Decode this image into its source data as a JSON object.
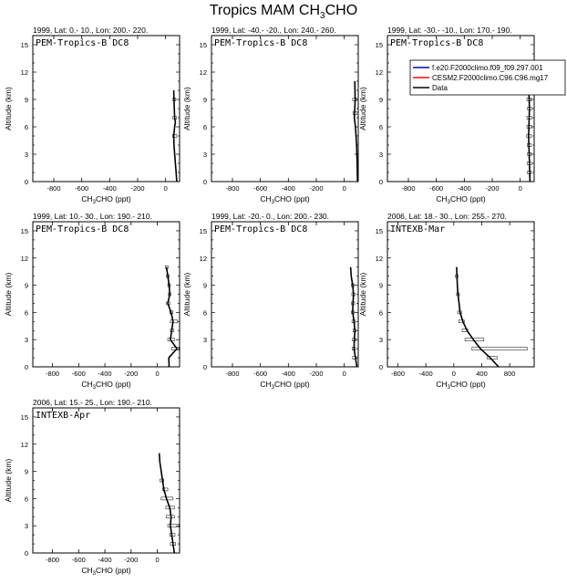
{
  "title": {
    "main": "Tropics MAM CH",
    "sub": "3",
    "suffix": "CHO"
  },
  "colors": {
    "model1": "#0000cc",
    "model2": "#ff0000",
    "data": "#000000"
  },
  "legend": {
    "placement": "top-right",
    "entries": [
      {
        "label": "f.e20.F2000climo.f09_f09.297.001",
        "color": "#0000cc"
      },
      {
        "label": "CESM2.F2000climo.C96.C96.mg17",
        "color": "#ff0000"
      },
      {
        "label": "Data",
        "color": "#000000"
      }
    ]
  },
  "chart_data": [
    {
      "type": "line",
      "title": "1999, Lat: 0.- 10., Lon: 200.- 220.",
      "campaign": "PEM-Tropics-B DC8",
      "xlabel": "CH3CHO (ppt)",
      "ylabel": "Altitude (km)",
      "xlim": [
        -950,
        100
      ],
      "xticks": [
        -800,
        -600,
        -400,
        -200,
        0
      ],
      "ylim": [
        0,
        16
      ],
      "yticks": [
        0,
        3,
        6,
        9,
        12,
        15
      ],
      "series": [
        {
          "name": "Data",
          "x": [
            80,
            75,
            70,
            65,
            60,
            58,
            65,
            70,
            65,
            62,
            60,
            58
          ],
          "y": [
            0,
            1,
            2,
            3,
            4,
            5,
            6,
            6.5,
            7,
            8,
            9,
            10
          ]
        }
      ],
      "whiskers": [
        {
          "y": 9,
          "lo": 52,
          "hi": 72
        },
        {
          "y": 7,
          "lo": 52,
          "hi": 78
        },
        {
          "y": 5,
          "lo": 50,
          "hi": 80
        }
      ]
    },
    {
      "type": "line",
      "title": "1999, Lat: -40.- -20., Lon: 240.- 260.",
      "campaign": "PEM-Tropics-B DC8",
      "xlabel": "CH3CHO (ppt)",
      "ylabel": "Altitude (km)",
      "xlim": [
        -950,
        100
      ],
      "xticks": [
        -800,
        -600,
        -400,
        -200,
        0
      ],
      "ylim": [
        0,
        16
      ],
      "yticks": [
        0,
        3,
        6,
        9,
        12,
        15
      ],
      "series": [
        {
          "name": "Data",
          "x": [
            95,
            92,
            88,
            80,
            72,
            75,
            78,
            75
          ],
          "y": [
            0,
            2,
            4,
            6,
            7,
            8,
            9,
            11
          ]
        }
      ],
      "whiskers": [
        {
          "y": 9,
          "lo": 60,
          "hi": 90
        },
        {
          "y": 7.5,
          "lo": 62,
          "hi": 90
        }
      ]
    },
    {
      "type": "line",
      "title": "1999, Lat: -30.- -10., Lon: 170.- 190.",
      "campaign": "PEM-Tropics-B DC8",
      "xlabel": "CH3CHO (ppt)",
      "ylabel": "Altitude (km)",
      "xlim": [
        -950,
        100
      ],
      "xticks": [
        -800,
        -600,
        -400,
        -200,
        0
      ],
      "ylim": [
        0,
        16
      ],
      "yticks": [
        0,
        3,
        6,
        9,
        12,
        15
      ],
      "series": [
        {
          "name": "Data",
          "x": [
            70,
            68,
            66,
            64,
            62,
            60,
            62,
            64,
            66,
            64,
            60,
            58,
            56
          ],
          "y": [
            0,
            1,
            2,
            3,
            4,
            5,
            6,
            7,
            8,
            9,
            10,
            11,
            12
          ]
        }
      ],
      "whiskers": [
        {
          "y": 1,
          "lo": 52,
          "hi": 80
        },
        {
          "y": 2,
          "lo": 50,
          "hi": 82
        },
        {
          "y": 3,
          "lo": 52,
          "hi": 80
        },
        {
          "y": 4,
          "lo": 50,
          "hi": 78
        },
        {
          "y": 5,
          "lo": 46,
          "hi": 80
        },
        {
          "y": 6,
          "lo": 48,
          "hi": 82
        },
        {
          "y": 7,
          "lo": 48,
          "hi": 82
        },
        {
          "y": 8,
          "lo": 52,
          "hi": 82
        },
        {
          "y": 9,
          "lo": 48,
          "hi": 80
        },
        {
          "y": 10,
          "lo": 46,
          "hi": 76
        }
      ]
    },
    {
      "type": "line",
      "title": "1999, Lat: 10.- 30., Lon: 190.- 210.",
      "campaign": "PEM-Tropics-B DC8",
      "xlabel": "CH3CHO (ppt)",
      "ylabel": "Altitude (km)",
      "xlim": [
        -950,
        170
      ],
      "xticks": [
        -800,
        -600,
        -400,
        -200,
        0
      ],
      "ylim": [
        0,
        16
      ],
      "yticks": [
        0,
        3,
        6,
        9,
        12,
        15
      ],
      "series": [
        {
          "name": "Data",
          "x": [
            90,
            88,
            150,
            100,
            110,
            120,
            105,
            80,
            95,
            90,
            80,
            70
          ],
          "y": [
            0,
            1,
            2,
            3,
            4,
            5,
            6,
            7,
            8,
            9,
            10,
            11
          ]
        }
      ],
      "whiskers": [
        {
          "y": 2,
          "lo": 110,
          "hi": 165
        },
        {
          "y": 3,
          "lo": 80,
          "hi": 130
        },
        {
          "y": 4,
          "lo": 100,
          "hi": 125
        },
        {
          "y": 5,
          "lo": 100,
          "hi": 155
        },
        {
          "y": 6,
          "lo": 95,
          "hi": 120
        },
        {
          "y": 7,
          "lo": 70,
          "hi": 95
        },
        {
          "y": 8,
          "lo": 85,
          "hi": 105
        },
        {
          "y": 9,
          "lo": 80,
          "hi": 100
        },
        {
          "y": 10,
          "lo": 70,
          "hi": 92
        },
        {
          "y": 11,
          "lo": 60,
          "hi": 82
        }
      ]
    },
    {
      "type": "line",
      "title": "1999, Lat: -20.- 0., Lon: 200.- 230.",
      "campaign": "PEM-Tropics-B DC8",
      "xlabel": "CH3CHO (ppt)",
      "ylabel": "Altitude (km)",
      "xlim": [
        -950,
        100
      ],
      "xticks": [
        -800,
        -600,
        -400,
        -200,
        0
      ],
      "ylim": [
        0,
        16
      ],
      "yticks": [
        0,
        3,
        6,
        9,
        12,
        15
      ],
      "series": [
        {
          "name": "Data",
          "x": [
            90,
            80,
            70,
            72,
            76,
            70,
            60,
            62,
            66,
            60,
            50,
            45
          ],
          "y": [
            0,
            1,
            2,
            3,
            4,
            5,
            6,
            7,
            8,
            9,
            10,
            11
          ]
        }
      ],
      "whiskers": [
        {
          "y": 1,
          "lo": 60,
          "hi": 88
        },
        {
          "y": 2,
          "lo": 56,
          "hi": 80
        },
        {
          "y": 3,
          "lo": 58,
          "hi": 82
        },
        {
          "y": 4,
          "lo": 62,
          "hi": 84
        },
        {
          "y": 5,
          "lo": 55,
          "hi": 80
        },
        {
          "y": 6,
          "lo": 50,
          "hi": 72
        },
        {
          "y": 7,
          "lo": 52,
          "hi": 74
        },
        {
          "y": 8,
          "lo": 54,
          "hi": 76
        },
        {
          "y": 9,
          "lo": 50,
          "hi": 72
        }
      ]
    },
    {
      "type": "line",
      "title": "2006, Lat: 18.- 30., Lon: 255.- 270.",
      "campaign": "INTEXB-Mar",
      "xlabel": "CH3CHO (ppt)",
      "ylabel": "Altitude (km)",
      "xlim": [
        -950,
        1150
      ],
      "xticks": [
        -800,
        -400,
        0,
        400,
        800
      ],
      "ylim": [
        0,
        16
      ],
      "yticks": [
        0,
        3,
        6,
        9,
        12,
        15
      ],
      "series": [
        {
          "name": "Data",
          "x": [
            640,
            520,
            380,
            280,
            190,
            130,
            90,
            75,
            60,
            50,
            45,
            40
          ],
          "y": [
            0,
            1,
            2,
            3,
            4,
            5,
            6,
            7,
            8,
            9,
            10,
            11
          ]
        }
      ],
      "whiskers": [
        {
          "y": 1,
          "lo": 480,
          "hi": 620
        },
        {
          "y": 2,
          "lo": 260,
          "hi": 1050
        },
        {
          "y": 3,
          "lo": 160,
          "hi": 430
        },
        {
          "y": 4,
          "lo": 120,
          "hi": 200
        },
        {
          "y": 5,
          "lo": 70,
          "hi": 150
        },
        {
          "y": 6,
          "lo": 55,
          "hi": 110
        },
        {
          "y": 8,
          "lo": 40,
          "hi": 80
        },
        {
          "y": 10,
          "lo": 25,
          "hi": 60
        }
      ]
    },
    {
      "type": "line",
      "title": "2006, Lat: 15.- 25., Lon: 190.- 210.",
      "campaign": "INTEXB-Apr",
      "xlabel": "CH3CHO (ppt)",
      "ylabel": "Altitude (km)",
      "xlim": [
        -950,
        170
      ],
      "xticks": [
        -800,
        -600,
        -400,
        -200,
        0
      ],
      "ylim": [
        0,
        16
      ],
      "yticks": [
        0,
        3,
        6,
        9,
        12,
        15
      ],
      "series": [
        {
          "name": "Data",
          "x": [
            130,
            120,
            110,
            100,
            105,
            95,
            70,
            50,
            40,
            30,
            20,
            15
          ],
          "y": [
            0,
            1,
            2,
            3,
            4,
            5,
            6,
            7,
            8,
            9,
            10,
            11
          ]
        }
      ],
      "whiskers": [
        {
          "y": 1,
          "lo": 100,
          "hi": 140
        },
        {
          "y": 2,
          "lo": 95,
          "hi": 135
        },
        {
          "y": 3,
          "lo": 80,
          "hi": 165
        },
        {
          "y": 4,
          "lo": 70,
          "hi": 130
        },
        {
          "y": 5,
          "lo": 65,
          "hi": 130
        },
        {
          "y": 6,
          "lo": 30,
          "hi": 120
        },
        {
          "y": 7,
          "lo": 40,
          "hi": 80
        },
        {
          "y": 8,
          "lo": 20,
          "hi": 50
        }
      ]
    }
  ]
}
